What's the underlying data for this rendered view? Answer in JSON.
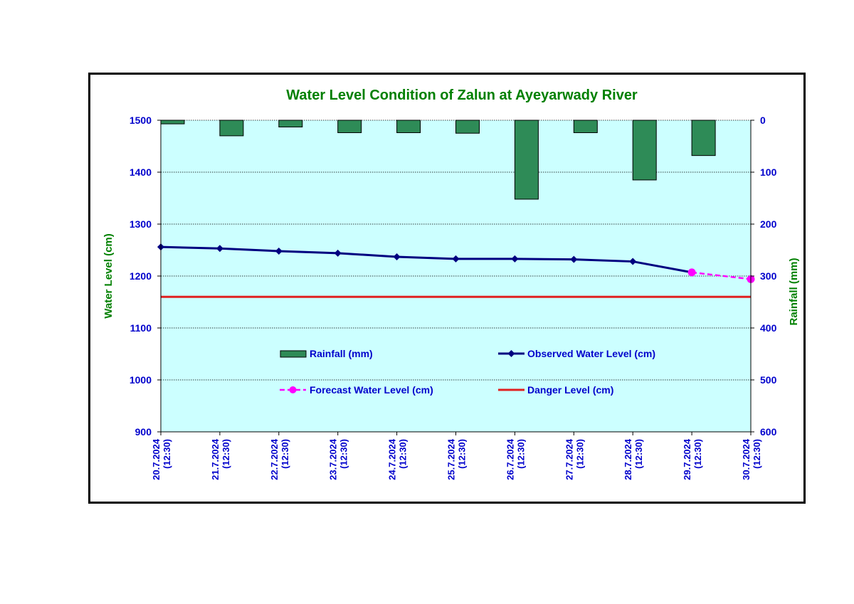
{
  "chart_data": {
    "type": "bar+line",
    "title": "Water Level Condition of Zalun at Ayeyarwady River",
    "categories": [
      [
        "20.7.2024",
        "(12:30)"
      ],
      [
        "21.7.2024",
        "(12:30)"
      ],
      [
        "22.7.2024",
        "(12:30)"
      ],
      [
        "23.7.2024",
        "(12:30)"
      ],
      [
        "24.7.2024",
        "(12:30)"
      ],
      [
        "25.7.2024",
        "(12:30)"
      ],
      [
        "26.7.2024",
        "(12:30)"
      ],
      [
        "27.7.2024",
        "(12:30)"
      ],
      [
        "28.7.2024",
        "(12:30)"
      ],
      [
        "29.7.2024",
        "(12:30)"
      ],
      [
        "30.7.2024",
        "(12:30)"
      ]
    ],
    "y_left": {
      "label": "Water Level (cm)",
      "range": [
        900,
        1500
      ],
      "ticks": [
        "900",
        "1000",
        "1100",
        "1200",
        "1300",
        "1400",
        "1500"
      ]
    },
    "y_right": {
      "label": "Rainfall (mm)",
      "range": [
        0,
        600
      ],
      "inverted": true,
      "ticks": [
        "0",
        "100",
        "200",
        "300",
        "400",
        "500",
        "600"
      ]
    },
    "series": [
      {
        "name": "Rainfall (mm)",
        "kind": "bar",
        "axis": "right",
        "color": "#2e8b57",
        "values": [
          7,
          30,
          13,
          24,
          24,
          25,
          152,
          24,
          115,
          68,
          null
        ]
      },
      {
        "name": "Observed Water Level (cm)",
        "kind": "line",
        "axis": "left",
        "color": "#000080",
        "marker": "diamond",
        "values": [
          1256,
          1253,
          1248,
          1244,
          1237,
          1233,
          1233,
          1232,
          1228,
          1207,
          null
        ]
      },
      {
        "name": "Forecast Water Level (cm)",
        "kind": "line",
        "axis": "left",
        "color": "#ff00ff",
        "dashed": true,
        "marker": "circle",
        "values": [
          null,
          null,
          null,
          null,
          null,
          null,
          null,
          null,
          null,
          1207,
          1194
        ]
      },
      {
        "name": "Danger Level (cm)",
        "kind": "line",
        "axis": "left",
        "color": "#e02020",
        "values": [
          1160,
          1160,
          1160,
          1160,
          1160,
          1160,
          1160,
          1160,
          1160,
          1160,
          1160
        ]
      }
    ],
    "grid": true,
    "plot_background": "#ccffff",
    "legend_placement": "inside-bottom"
  },
  "colors": {
    "title": "#008000",
    "tick_labels": "#0000cc",
    "axis_titles": "#008000",
    "legend_text": "#0000cc"
  }
}
